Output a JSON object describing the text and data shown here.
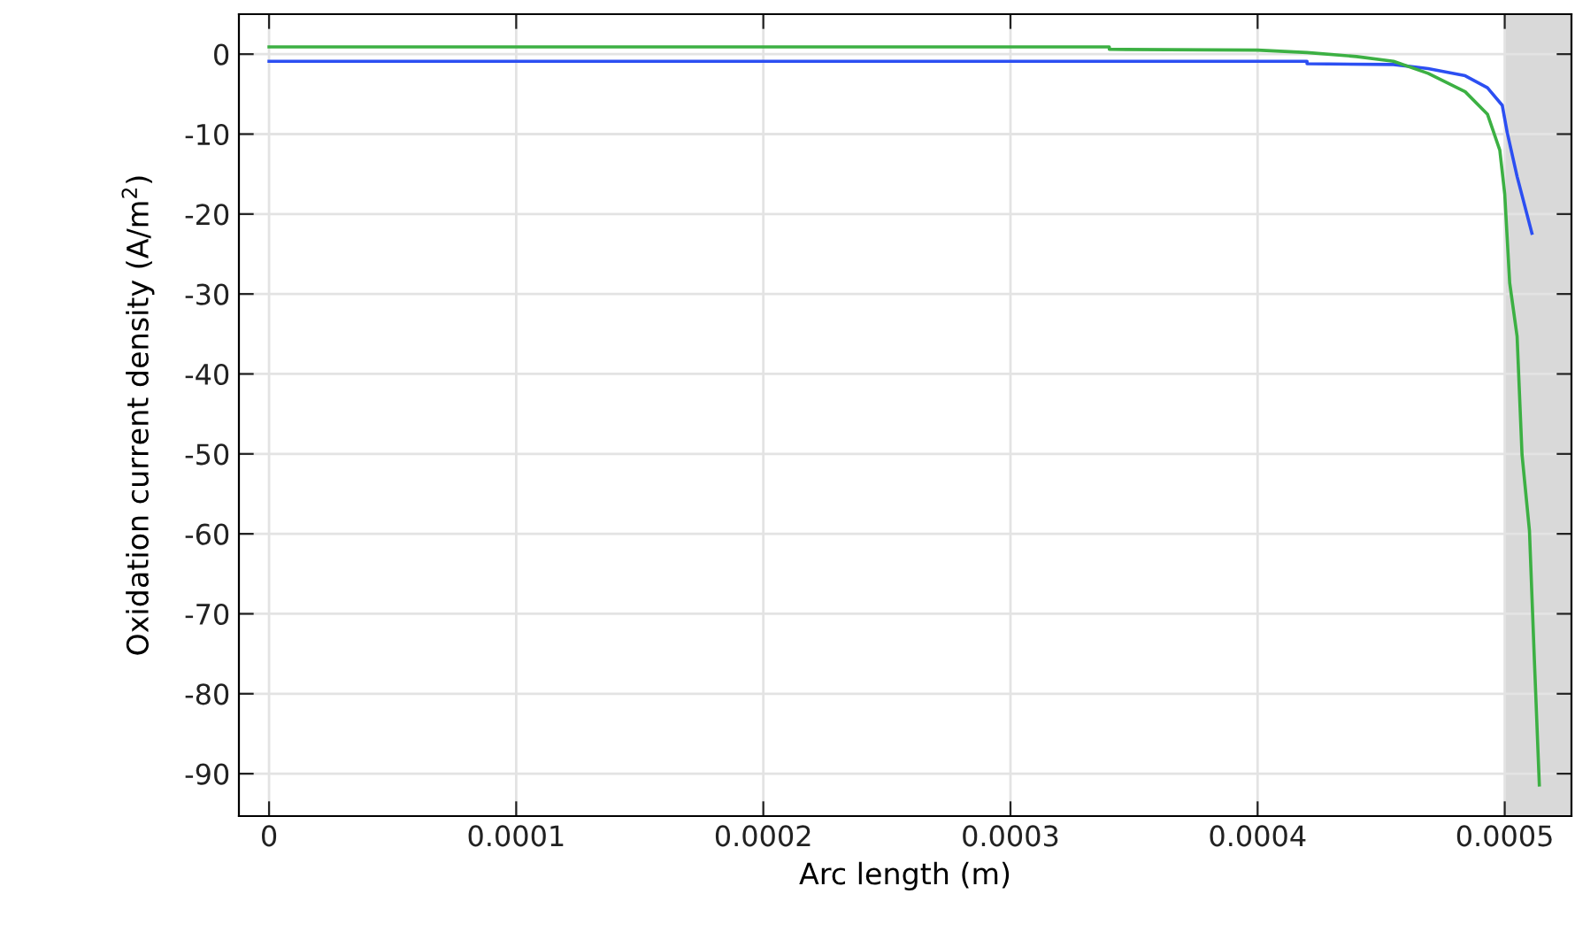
{
  "chart_data": {
    "type": "line",
    "xlabel": "Arc length (m)",
    "ylabel": "Oxidation current density (A/m$^{2}$)",
    "xlim": [
      -1.22e-05,
      0.000527
    ],
    "ylim": [
      -95.3,
      5
    ],
    "xticks": [
      {
        "value": 0,
        "label": "0"
      },
      {
        "value": 0.0001,
        "label": "0.0001"
      },
      {
        "value": 0.0002,
        "label": "0.0002"
      },
      {
        "value": 0.0003,
        "label": "0.0003"
      },
      {
        "value": 0.0004,
        "label": "0.0004"
      },
      {
        "value": 0.0005,
        "label": "0.0005"
      }
    ],
    "yticks": [
      0,
      -10,
      -20,
      -30,
      -40,
      -50,
      -60,
      -70,
      -80,
      -90
    ],
    "grid": true,
    "legend": false,
    "line_style": "solid",
    "marker": "none",
    "bands": [
      {
        "axis": "x",
        "from": 0.0005,
        "to": 0.000527,
        "color": "#d9d9d9"
      }
    ],
    "series": [
      {
        "color": "#2c4ff2",
        "x": [
          0,
          0.00042,
          0.00042,
          0.000455,
          0.000469,
          0.000484,
          0.000493,
          0.000499,
          0.000501,
          0.000505,
          0.000511
        ],
        "values": [
          -0.9,
          -0.9,
          -1.2,
          -1.3,
          -1.8,
          -2.7,
          -4.2,
          -6.4,
          -9.8,
          -15.3,
          -22.4
        ]
      },
      {
        "color": "#3cb043",
        "x": [
          0,
          0.00034,
          0.00034,
          0.0004,
          0.00042,
          0.00044,
          0.000455,
          0.000469,
          0.000484,
          0.000493,
          0.000498,
          0.0005,
          0.000502,
          0.000505,
          0.000507,
          0.00051,
          0.000512,
          0.000514
        ],
        "values": [
          0.9,
          0.9,
          0.6,
          0.5,
          0.2,
          -0.3,
          -0.9,
          -2.4,
          -4.7,
          -7.5,
          -12,
          -17.5,
          -28.6,
          -35.3,
          -50.1,
          -59.6,
          -75.8,
          -91.4
        ]
      }
    ]
  }
}
